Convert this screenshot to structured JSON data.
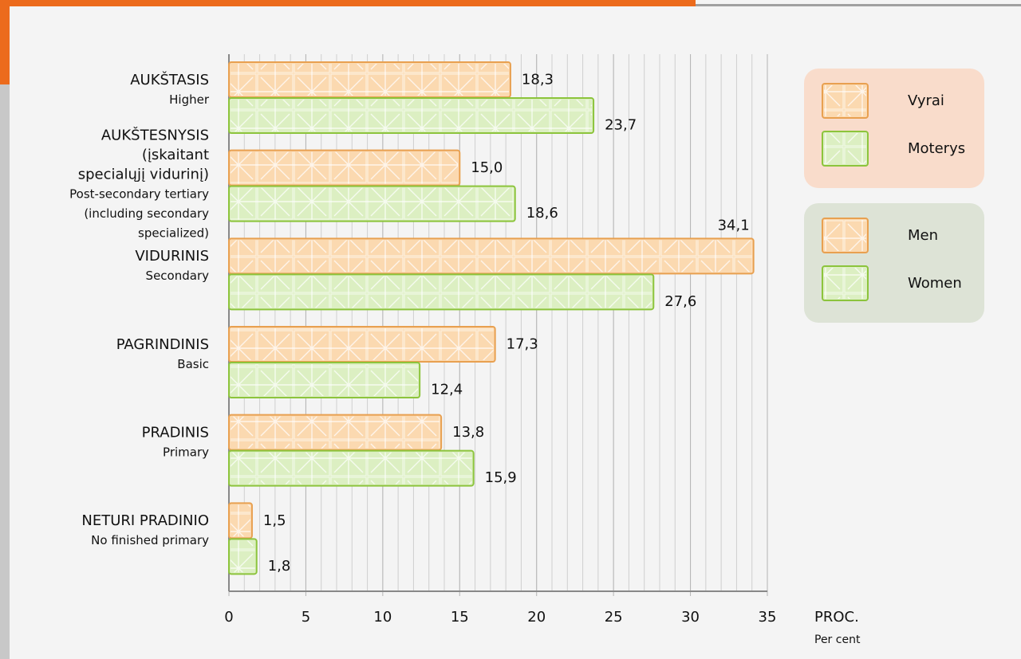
{
  "chart_data": {
    "type": "hbar",
    "categories": [
      {
        "label": [
          "AUKŠTASIS"
        ],
        "sublabel": [
          "Higher"
        ]
      },
      {
        "label": [
          "AUKŠTESNYSIS",
          "(įskaitant",
          "specialųjį vidurinį)"
        ],
        "sublabel": [
          "Post-secondary tertiary",
          "(including secondary",
          "specialized)"
        ]
      },
      {
        "label": [
          "VIDURINIS"
        ],
        "sublabel": [
          "Secondary"
        ]
      },
      {
        "label": [
          "PAGRINDINIS"
        ],
        "sublabel": [
          "Basic"
        ]
      },
      {
        "label": [
          "PRADINIS"
        ],
        "sublabel": [
          "Primary"
        ]
      },
      {
        "label": [
          "NETURI PRADINIO"
        ],
        "sublabel": [
          "No finished primary"
        ]
      }
    ],
    "series": [
      {
        "name": "Vyrai",
        "name_en": "Men",
        "color": "#fbd9b0",
        "stroke": "#e8a050",
        "values": [
          18.3,
          15.0,
          34.1,
          17.3,
          13.8,
          1.5
        ],
        "value_labels": [
          "18,3",
          "15,0",
          "34,1",
          "17,3",
          "13,8",
          "1,5"
        ]
      },
      {
        "name": "Moterys",
        "name_en": "Women",
        "color": "#dcefc2",
        "stroke": "#8cc43c",
        "values": [
          23.7,
          18.6,
          27.6,
          12.4,
          15.9,
          1.8
        ],
        "value_labels": [
          "23,7",
          "18,6",
          "27,6",
          "12,4",
          "15,9",
          "1,8"
        ]
      }
    ],
    "xlim": [
      0,
      35
    ],
    "xticks": [
      0,
      5,
      10,
      15,
      20,
      25,
      30,
      35
    ],
    "xminor_step": 1,
    "grid": true,
    "xlabel": "PROC.",
    "xlabel_en": "Per cent",
    "legend": "upper right"
  }
}
